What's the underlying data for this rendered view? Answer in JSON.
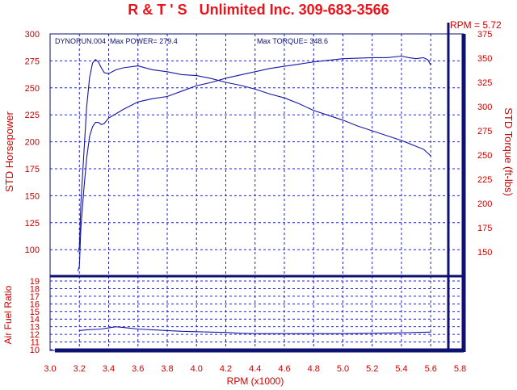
{
  "header": {
    "title": "R & T ' S   Unlimited Inc. 309-683-3566",
    "rpm_readout": "RPM = 5.72",
    "run_info": "DYNORUN.004  Max POWER= 279.4",
    "max_torque_info": "Max TORQUE= 348.6"
  },
  "colors": {
    "background": "#ffffff",
    "title_red": "#e8141b",
    "axis_text_red": "#cc0000",
    "curve_blue": "#1515a8",
    "frame_navy": "#0c1173",
    "grid_blue": "#2323c8"
  },
  "chart_data": [
    {
      "type": "line",
      "panel": "power-torque",
      "xlabel": "RPM (x1000)",
      "ylabel_left": "STD Horsepower",
      "ylabel_right": "STD Torque (ft-lbs)",
      "xlim": [
        3.0,
        5.8
      ],
      "xticks": [
        "3.0",
        "3.2",
        "3.4",
        "3.6",
        "3.8",
        "4.0",
        "4.2",
        "4.4",
        "4.6",
        "4.8",
        "5.0",
        "5.2",
        "5.4",
        "5.6",
        "5.8"
      ],
      "ylim_left": [
        75,
        300
      ],
      "yticks_left": [
        "100",
        "125",
        "150",
        "175",
        "200",
        "225",
        "250",
        "275",
        "300"
      ],
      "ylim_right": [
        125,
        375
      ],
      "yticks_right": [
        "150",
        "175",
        "200",
        "225",
        "250",
        "275",
        "300",
        "325",
        "350",
        "375"
      ],
      "grid": true,
      "cursor_rpm": 5.72,
      "series": [
        {
          "axis": "left",
          "points": [
            [
              3.19,
              80
            ],
            [
              3.2,
              85
            ],
            [
              3.21,
              120
            ],
            [
              3.23,
              155
            ],
            [
              3.25,
              185
            ],
            [
              3.27,
              205
            ],
            [
              3.29,
              214
            ],
            [
              3.31,
              218
            ],
            [
              3.33,
              218
            ],
            [
              3.35,
              216
            ],
            [
              3.37,
              217
            ],
            [
              3.4,
              222
            ],
            [
              3.45,
              226
            ],
            [
              3.5,
              230
            ],
            [
              3.6,
              237
            ],
            [
              3.7,
              240
            ],
            [
              3.8,
              242
            ],
            [
              3.9,
              247
            ],
            [
              4.0,
              252
            ],
            [
              4.1,
              255
            ],
            [
              4.2,
              259
            ],
            [
              4.3,
              262
            ],
            [
              4.4,
              265
            ],
            [
              4.5,
              268
            ],
            [
              4.6,
              270
            ],
            [
              4.7,
              272
            ],
            [
              4.8,
              274
            ],
            [
              5.0,
              277
            ],
            [
              5.2,
              278
            ],
            [
              5.3,
              278
            ],
            [
              5.4,
              279.4
            ],
            [
              5.45,
              278
            ],
            [
              5.5,
              277
            ],
            [
              5.55,
              278
            ],
            [
              5.58,
              276
            ],
            [
              5.6,
              271
            ]
          ]
        },
        {
          "axis": "right",
          "points": [
            [
              3.19,
              150
            ],
            [
              3.2,
              155
            ],
            [
              3.21,
              200
            ],
            [
              3.23,
              250
            ],
            [
              3.25,
              300
            ],
            [
              3.27,
              330
            ],
            [
              3.29,
              345
            ],
            [
              3.31,
              348.6
            ],
            [
              3.33,
              346
            ],
            [
              3.35,
              340
            ],
            [
              3.37,
              335
            ],
            [
              3.4,
              334
            ],
            [
              3.45,
              338
            ],
            [
              3.5,
              340
            ],
            [
              3.6,
              342
            ],
            [
              3.7,
              338
            ],
            [
              3.8,
              336
            ],
            [
              3.9,
              333
            ],
            [
              4.0,
              332
            ],
            [
              4.1,
              329
            ],
            [
              4.2,
              325
            ],
            [
              4.3,
              322
            ],
            [
              4.4,
              318
            ],
            [
              4.5,
              313
            ],
            [
              4.6,
              309
            ],
            [
              4.7,
              303
            ],
            [
              4.8,
              296
            ],
            [
              4.9,
              291
            ],
            [
              5.0,
              286
            ],
            [
              5.1,
              280
            ],
            [
              5.2,
              275
            ],
            [
              5.3,
              270
            ],
            [
              5.4,
              265
            ],
            [
              5.5,
              259
            ],
            [
              5.55,
              256
            ],
            [
              5.58,
              252
            ],
            [
              5.6,
              249
            ]
          ]
        }
      ]
    },
    {
      "type": "line",
      "panel": "air-fuel",
      "ylabel": "Air Fuel Ratio",
      "xlim": [
        3.0,
        5.8
      ],
      "ylim": [
        10,
        19
      ],
      "yticks": [
        "10",
        "11",
        "12",
        "13",
        "14",
        "15",
        "16",
        "17",
        "18",
        "19"
      ],
      "grid": true,
      "series": [
        {
          "points": [
            [
              3.2,
              12.5
            ],
            [
              3.25,
              12.6
            ],
            [
              3.3,
              12.65
            ],
            [
              3.35,
              12.7
            ],
            [
              3.4,
              12.85
            ],
            [
              3.45,
              13.0
            ],
            [
              3.5,
              12.9
            ],
            [
              3.6,
              12.7
            ],
            [
              3.7,
              12.6
            ],
            [
              3.8,
              12.5
            ],
            [
              3.9,
              12.4
            ],
            [
              4.0,
              12.35
            ],
            [
              4.1,
              12.3
            ],
            [
              4.2,
              12.25
            ],
            [
              4.3,
              12.15
            ],
            [
              4.4,
              12.1
            ],
            [
              4.5,
              12.1
            ],
            [
              4.6,
              12.1
            ],
            [
              4.8,
              12.1
            ],
            [
              5.0,
              12.1
            ],
            [
              5.2,
              12.15
            ],
            [
              5.4,
              12.2
            ],
            [
              5.5,
              12.25
            ],
            [
              5.6,
              12.3
            ]
          ]
        }
      ]
    }
  ]
}
